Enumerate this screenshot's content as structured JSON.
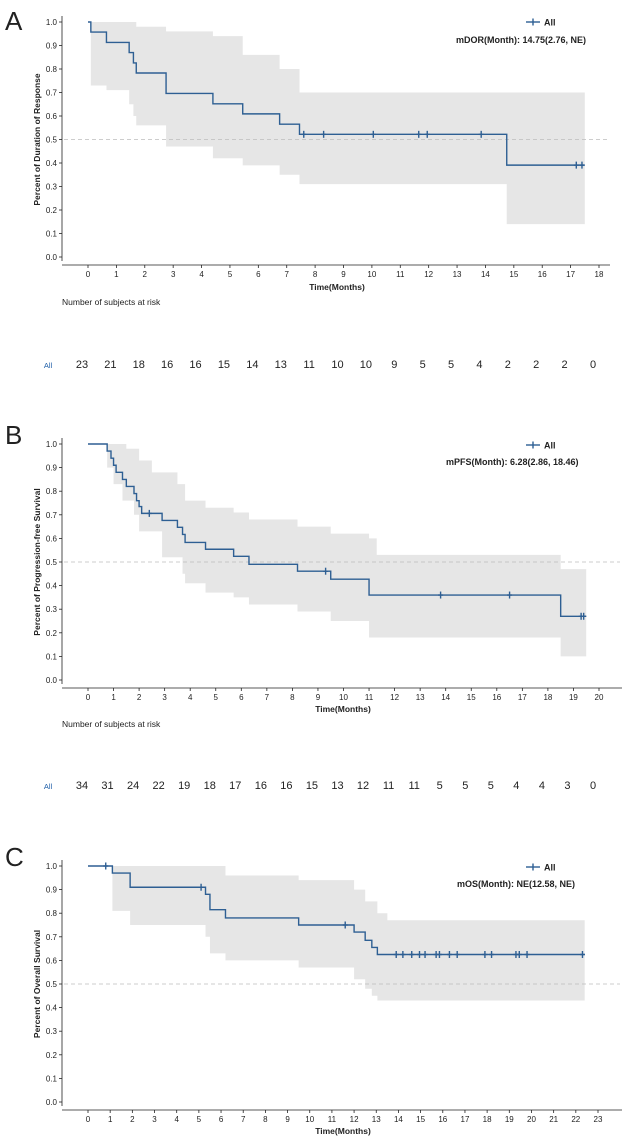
{
  "chart_data": [
    {
      "type": "line",
      "panel_label": "A",
      "ylabel": "Percent of Duration of Response",
      "xlabel": "Time(Months)",
      "xlim": [
        0,
        18
      ],
      "ylim": [
        0,
        1
      ],
      "xticks": [
        0,
        1,
        2,
        3,
        4,
        5,
        6,
        7,
        8,
        9,
        10,
        11,
        12,
        13,
        14,
        15,
        16,
        17,
        18
      ],
      "yticks": [
        "0.0",
        "0.1",
        "0.2",
        "0.3",
        "0.4",
        "0.5",
        "0.6",
        "0.7",
        "0.8",
        "0.9",
        "1.0"
      ],
      "reference_line_y": 0.5,
      "legend": "All",
      "annotation": "mDOR(Month): 14.75(2.76, NE)",
      "series": [
        {
          "name": "All",
          "color": "#2e5f93",
          "steps": [
            [
              0,
              1.0
            ],
            [
              0.1,
              0.957
            ],
            [
              0.65,
              0.913
            ],
            [
              1.45,
              0.87
            ],
            [
              1.6,
              0.826
            ],
            [
              1.7,
              0.783
            ],
            [
              2.75,
              0.696
            ],
            [
              4.4,
              0.652
            ],
            [
              5.45,
              0.609
            ],
            [
              6.75,
              0.565
            ],
            [
              7.45,
              0.522
            ],
            [
              14.75,
              0.391
            ],
            [
              17.5,
              0.391
            ]
          ],
          "censored": [
            [
              7.6,
              0.522
            ],
            [
              8.3,
              0.522
            ],
            [
              10.05,
              0.522
            ],
            [
              11.65,
              0.522
            ],
            [
              11.95,
              0.522
            ],
            [
              13.85,
              0.522
            ],
            [
              17.2,
              0.391
            ],
            [
              17.4,
              0.391
            ]
          ],
          "ci_upper": [
            [
              0,
              1.0
            ],
            [
              0.1,
              1.0
            ],
            [
              1.7,
              0.98
            ],
            [
              2.75,
              0.96
            ],
            [
              4.4,
              0.94
            ],
            [
              5.45,
              0.86
            ],
            [
              6.75,
              0.8
            ],
            [
              7.45,
              0.7
            ],
            [
              14.75,
              0.7
            ],
            [
              17.5,
              0.7
            ]
          ],
          "ci_lower": [
            [
              0,
              1.0
            ],
            [
              0.1,
              0.73
            ],
            [
              0.65,
              0.71
            ],
            [
              1.45,
              0.65
            ],
            [
              1.6,
              0.6
            ],
            [
              1.7,
              0.56
            ],
            [
              2.75,
              0.47
            ],
            [
              4.4,
              0.42
            ],
            [
              5.45,
              0.39
            ],
            [
              6.75,
              0.35
            ],
            [
              7.45,
              0.31
            ],
            [
              14.75,
              0.14
            ],
            [
              17.5,
              0.14
            ]
          ]
        }
      ],
      "risk_table": {
        "title": "Number of subjects at risk",
        "label": "All",
        "counts": [
          23,
          21,
          18,
          16,
          16,
          15,
          14,
          13,
          11,
          10,
          10,
          9,
          5,
          5,
          4,
          2,
          2,
          2,
          0
        ]
      }
    },
    {
      "type": "line",
      "panel_label": "B",
      "ylabel": "Percent of Progression-free Survival",
      "xlabel": "Time(Months)",
      "xlim": [
        0,
        20
      ],
      "ylim": [
        0,
        1
      ],
      "xticks": [
        0,
        1,
        2,
        3,
        4,
        5,
        6,
        7,
        8,
        9,
        10,
        11,
        12,
        13,
        14,
        15,
        16,
        17,
        18,
        19,
        20
      ],
      "yticks": [
        "0.0",
        "0.1",
        "0.2",
        "0.3",
        "0.4",
        "0.5",
        "0.6",
        "0.7",
        "0.8",
        "0.9",
        "1.0"
      ],
      "reference_line_y": 0.5,
      "legend": "All",
      "annotation": "mPFS(Month): 6.28(2.86, 18.46)",
      "series": [
        {
          "name": "All",
          "color": "#2e5f93",
          "steps": [
            [
              0,
              1.0
            ],
            [
              0.75,
              0.97
            ],
            [
              0.9,
              0.94
            ],
            [
              1.0,
              0.91
            ],
            [
              1.1,
              0.88
            ],
            [
              1.35,
              0.85
            ],
            [
              1.5,
              0.82
            ],
            [
              1.8,
              0.79
            ],
            [
              1.9,
              0.76
            ],
            [
              2.0,
              0.735
            ],
            [
              2.1,
              0.706
            ],
            [
              2.9,
              0.676
            ],
            [
              3.5,
              0.647
            ],
            [
              3.7,
              0.617
            ],
            [
              3.8,
              0.583
            ],
            [
              4.6,
              0.554
            ],
            [
              5.7,
              0.524
            ],
            [
              6.3,
              0.49
            ],
            [
              8.2,
              0.461
            ],
            [
              9.5,
              0.427
            ],
            [
              11.0,
              0.36
            ],
            [
              18.5,
              0.27
            ],
            [
              19.5,
              0.27
            ]
          ],
          "censored": [
            [
              2.4,
              0.706
            ],
            [
              9.3,
              0.461
            ],
            [
              13.8,
              0.36
            ],
            [
              16.5,
              0.36
            ],
            [
              19.3,
              0.27
            ],
            [
              19.4,
              0.27
            ]
          ],
          "ci_upper": [
            [
              0,
              1.0
            ],
            [
              1.0,
              1.0
            ],
            [
              1.5,
              0.98
            ],
            [
              2.0,
              0.93
            ],
            [
              2.5,
              0.88
            ],
            [
              3.5,
              0.83
            ],
            [
              3.8,
              0.76
            ],
            [
              4.6,
              0.73
            ],
            [
              5.7,
              0.71
            ],
            [
              6.3,
              0.68
            ],
            [
              8.2,
              0.65
            ],
            [
              9.5,
              0.62
            ],
            [
              11.0,
              0.6
            ],
            [
              11.3,
              0.53
            ],
            [
              18.5,
              0.47
            ],
            [
              19.5,
              0.47
            ]
          ],
          "ci_lower": [
            [
              0,
              1.0
            ],
            [
              0.75,
              0.9
            ],
            [
              1.0,
              0.83
            ],
            [
              1.35,
              0.76
            ],
            [
              1.8,
              0.7
            ],
            [
              2.0,
              0.63
            ],
            [
              2.9,
              0.52
            ],
            [
              3.7,
              0.45
            ],
            [
              3.8,
              0.41
            ],
            [
              4.6,
              0.37
            ],
            [
              5.7,
              0.35
            ],
            [
              6.3,
              0.32
            ],
            [
              8.2,
              0.29
            ],
            [
              9.5,
              0.25
            ],
            [
              11.0,
              0.18
            ],
            [
              11.3,
              0.18
            ],
            [
              18.5,
              0.1
            ],
            [
              19.5,
              0.1
            ]
          ]
        }
      ],
      "risk_table": {
        "title": "Number of subjects at risk",
        "label": "All",
        "counts": [
          34,
          31,
          24,
          22,
          19,
          18,
          17,
          16,
          16,
          15,
          13,
          12,
          11,
          11,
          5,
          5,
          5,
          4,
          4,
          3,
          0
        ]
      }
    },
    {
      "type": "line",
      "panel_label": "C",
      "ylabel": "Percent of Overall Survival",
      "xlabel": "Time(Months)",
      "xlim": [
        0,
        23
      ],
      "ylim": [
        0,
        1
      ],
      "xticks": [
        0,
        1,
        2,
        3,
        4,
        5,
        6,
        7,
        8,
        9,
        10,
        11,
        12,
        13,
        14,
        15,
        16,
        17,
        18,
        19,
        20,
        21,
        22,
        23
      ],
      "yticks": [
        "0.0",
        "0.1",
        "0.2",
        "0.3",
        "0.4",
        "0.5",
        "0.6",
        "0.7",
        "0.8",
        "0.9",
        "1.0"
      ],
      "reference_line_y": 0.5,
      "legend": "All",
      "annotation": "mOS(Month): NE(12.58, NE)",
      "series": [
        {
          "name": "All",
          "color": "#2e5f93",
          "steps": [
            [
              0,
              1.0
            ],
            [
              1.1,
              0.97
            ],
            [
              1.9,
              0.91
            ],
            [
              5.3,
              0.88
            ],
            [
              5.5,
              0.815
            ],
            [
              6.2,
              0.78
            ],
            [
              9.5,
              0.75
            ],
            [
              12.0,
              0.72
            ],
            [
              12.5,
              0.685
            ],
            [
              12.8,
              0.655
            ],
            [
              13.05,
              0.625
            ],
            [
              22.4,
              0.625
            ]
          ],
          "censored": [
            [
              0.8,
              1.0
            ],
            [
              5.1,
              0.91
            ],
            [
              11.6,
              0.75
            ],
            [
              13.9,
              0.625
            ],
            [
              14.2,
              0.625
            ],
            [
              14.6,
              0.625
            ],
            [
              14.95,
              0.625
            ],
            [
              15.2,
              0.625
            ],
            [
              15.7,
              0.625
            ],
            [
              15.85,
              0.625
            ],
            [
              16.3,
              0.625
            ],
            [
              16.65,
              0.625
            ],
            [
              17.9,
              0.625
            ],
            [
              18.2,
              0.625
            ],
            [
              19.3,
              0.625
            ],
            [
              19.45,
              0.625
            ],
            [
              19.8,
              0.625
            ],
            [
              22.3,
              0.625
            ]
          ],
          "ci_upper": [
            [
              0,
              1.0
            ],
            [
              5.3,
              1.0
            ],
            [
              6.2,
              0.96
            ],
            [
              9.5,
              0.94
            ],
            [
              12.0,
              0.9
            ],
            [
              12.5,
              0.85
            ],
            [
              13.05,
              0.8
            ],
            [
              13.5,
              0.77
            ],
            [
              22.4,
              0.77
            ]
          ],
          "ci_lower": [
            [
              0,
              1.0
            ],
            [
              1.1,
              0.81
            ],
            [
              1.9,
              0.75
            ],
            [
              5.3,
              0.7
            ],
            [
              5.5,
              0.63
            ],
            [
              6.2,
              0.6
            ],
            [
              9.5,
              0.57
            ],
            [
              12.0,
              0.52
            ],
            [
              12.5,
              0.48
            ],
            [
              12.8,
              0.45
            ],
            [
              13.05,
              0.43
            ],
            [
              22.4,
              0.43
            ]
          ]
        }
      ]
    }
  ]
}
